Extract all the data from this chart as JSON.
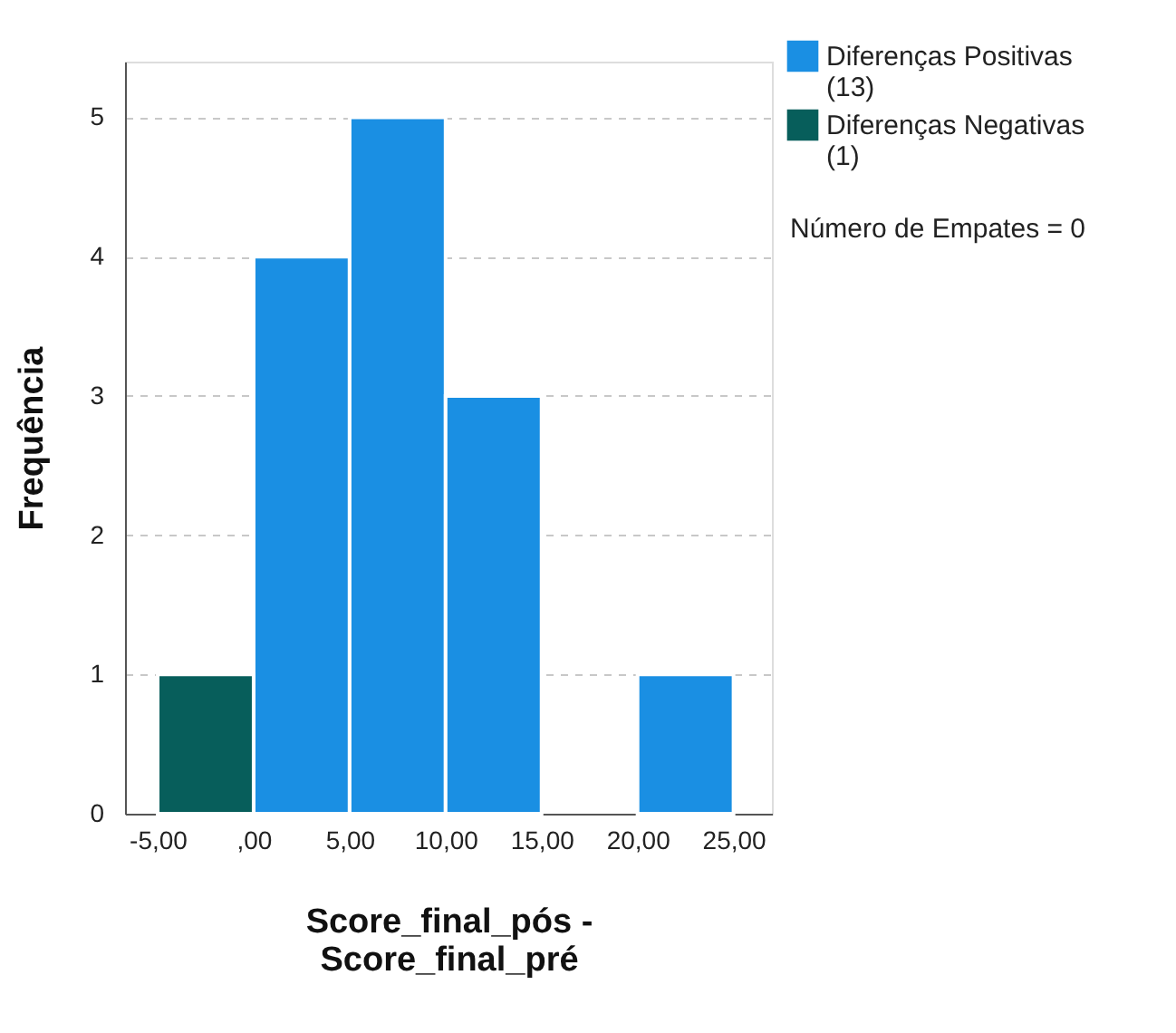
{
  "chart_data": {
    "type": "histogram",
    "xlabel": "Score_final_pós - Score_final_pré",
    "ylabel": "Frequência",
    "bins": [
      -5,
      0,
      5,
      10,
      15,
      20,
      25
    ],
    "series": [
      {
        "name": "Diferenças Positivas (13)",
        "color": "#1a8fe3",
        "values": [
          null,
          4,
          5,
          3,
          0,
          1
        ]
      },
      {
        "name": "Diferenças Negativas (1)",
        "color": "#075e5b",
        "values": [
          1,
          null,
          null,
          null,
          null,
          null
        ]
      }
    ],
    "xlim": [
      -6.7,
      27
    ],
    "ylim": [
      0,
      5.4
    ],
    "xticks": [
      {
        "value": -5,
        "label": "-5,00"
      },
      {
        "value": 0,
        "label": ",00"
      },
      {
        "value": 5,
        "label": "5,00"
      },
      {
        "value": 10,
        "label": "10,00"
      },
      {
        "value": 15,
        "label": "15,00"
      },
      {
        "value": 20,
        "label": "20,00"
      },
      {
        "value": 25,
        "label": "25,00"
      }
    ],
    "yticks": [
      0,
      1,
      2,
      3,
      4,
      5
    ],
    "grid": "y",
    "legend": "top right",
    "annotations": [
      "Número de Empates = 0"
    ]
  }
}
